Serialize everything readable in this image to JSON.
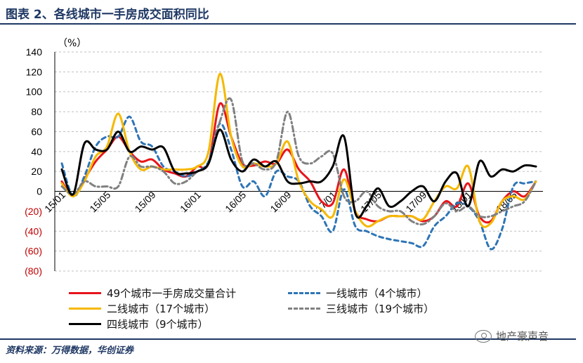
{
  "header": {
    "title": "图表 2、各线城市一手房成交面积同比"
  },
  "footer": {
    "source": "资料来源：万得数据，华创证券",
    "watermark": "地产豪声音"
  },
  "colors": {
    "title": "#1f3864",
    "negative_tick": "#c00000"
  },
  "chart_data": {
    "type": "line",
    "ylabel": "（%）",
    "ylim": [
      -80,
      140
    ],
    "y_ticks": [
      140,
      120,
      100,
      80,
      60,
      40,
      20,
      0,
      -20,
      -40,
      -60,
      -80
    ],
    "y_tick_labels": [
      "140",
      "120",
      "100",
      "80",
      "60",
      "40",
      "20",
      "0",
      "(20)",
      "(40)",
      "(60)",
      "(80)"
    ],
    "x_tick_labels": [
      "15/01",
      "15/05",
      "15/09",
      "16/01",
      "16/05",
      "16/09",
      "17/01",
      "17/05",
      "17/09",
      "18/01",
      "18/05"
    ],
    "x_tick_index": [
      0,
      4,
      8,
      12,
      16,
      20,
      24,
      28,
      32,
      36,
      40
    ],
    "x": [
      "15/01",
      "15/02",
      "15/03",
      "15/04",
      "15/05",
      "15/06",
      "15/07",
      "15/08",
      "15/09",
      "15/10",
      "15/11",
      "15/12",
      "16/01",
      "16/02",
      "16/03",
      "16/04",
      "16/05",
      "16/06",
      "16/07",
      "16/08",
      "16/09",
      "16/10",
      "16/11",
      "16/12",
      "17/01",
      "17/02",
      "17/03",
      "17/04",
      "17/05",
      "17/06",
      "17/07",
      "17/08",
      "17/09",
      "17/10",
      "17/11",
      "17/12",
      "18/01",
      "18/02",
      "18/03",
      "18/04",
      "18/05",
      "18/06",
      "18/07"
    ],
    "grid": true,
    "series": [
      {
        "name": "49个城市一手房成交量合计",
        "color": "#e8141b",
        "dash": "solid",
        "values": [
          10,
          -5,
          12,
          30,
          42,
          55,
          40,
          30,
          32,
          22,
          18,
          15,
          25,
          28,
          88,
          55,
          28,
          26,
          30,
          28,
          42,
          22,
          10,
          -10,
          -12,
          22,
          -20,
          -28,
          -30,
          -25,
          -25,
          -25,
          -30,
          -25,
          -10,
          -15,
          8,
          -25,
          -30,
          -10,
          0,
          -5,
          10
        ]
      },
      {
        "name": "一线城市（4个城市）",
        "color": "#2e75b6",
        "dash": "6,5",
        "values": [
          28,
          -5,
          15,
          45,
          55,
          55,
          75,
          50,
          45,
          25,
          20,
          15,
          20,
          30,
          68,
          42,
          5,
          10,
          -5,
          20,
          15,
          10,
          -15,
          -25,
          -40,
          2,
          -35,
          -40,
          -45,
          -48,
          -50,
          -52,
          -55,
          -35,
          -25,
          -12,
          -15,
          -30,
          -58,
          -38,
          5,
          8,
          10
        ]
      },
      {
        "name": "二线城市（17个城市）",
        "color": "#f5b800",
        "dash": "solid",
        "values": [
          8,
          -5,
          10,
          35,
          45,
          78,
          40,
          22,
          25,
          22,
          22,
          22,
          25,
          40,
          118,
          55,
          25,
          28,
          25,
          28,
          50,
          10,
          -10,
          -18,
          -25,
          12,
          -20,
          -35,
          -30,
          -25,
          -25,
          -25,
          -28,
          -10,
          5,
          3,
          25,
          -30,
          -32,
          -10,
          -5,
          -8,
          10
        ]
      },
      {
        "name": "三线城市（19个城市）",
        "color": "#808080",
        "dash": "8,4,2,4",
        "values": [
          5,
          -3,
          10,
          5,
          5,
          5,
          35,
          25,
          25,
          20,
          8,
          10,
          20,
          28,
          70,
          92,
          30,
          28,
          22,
          30,
          80,
          35,
          28,
          35,
          38,
          -5,
          -10,
          0,
          -15,
          -20,
          -20,
          -30,
          -33,
          -25,
          -12,
          -20,
          -15,
          -25,
          -25,
          -20,
          -15,
          -10,
          10
        ]
      },
      {
        "name": "四线城市（9个城市）",
        "color": "#000000",
        "dash": "solid",
        "values": [
          22,
          -3,
          48,
          42,
          42,
          60,
          40,
          45,
          42,
          44,
          20,
          18,
          20,
          28,
          62,
          32,
          20,
          32,
          25,
          30,
          10,
          8,
          10,
          10,
          25,
          55,
          -22,
          -15,
          3,
          -15,
          -10,
          0,
          5,
          -10,
          10,
          18,
          -15,
          30,
          15,
          22,
          20,
          26,
          25
        ]
      }
    ]
  }
}
